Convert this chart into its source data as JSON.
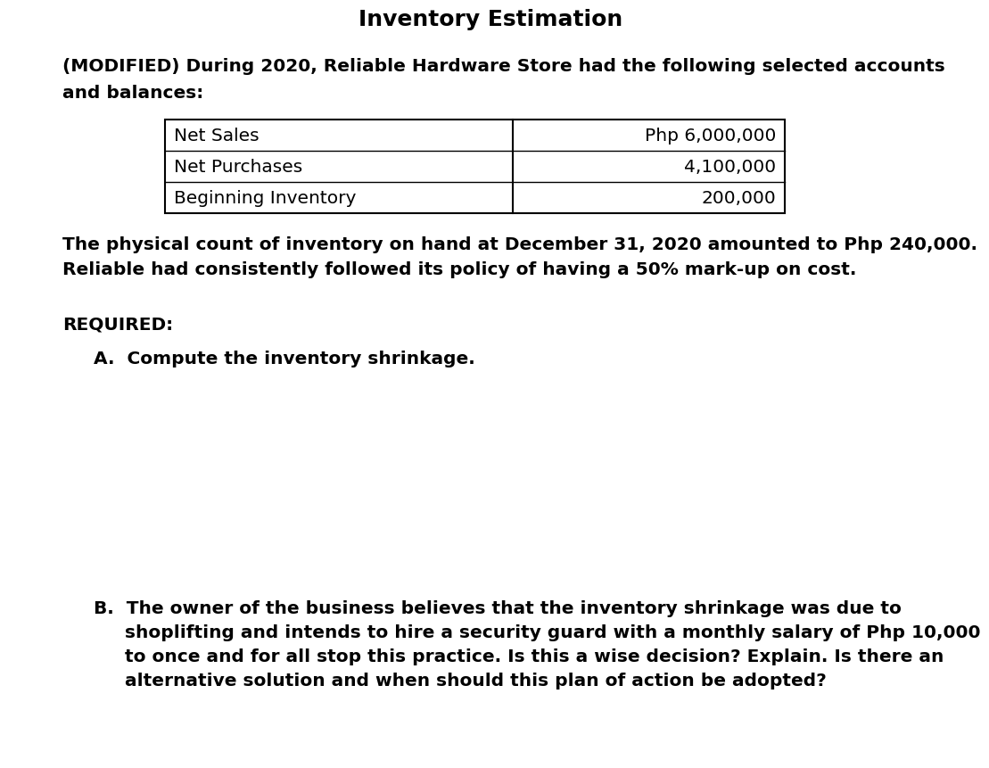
{
  "title": "Inventory Estimation",
  "bg_color": "#ffffff",
  "intro_line1": "(MODIFIED) During 2020, Reliable Hardware Store had the following selected accounts",
  "intro_line2": "and balances:",
  "table_rows": [
    [
      "Net Sales",
      "Php 6,000,000"
    ],
    [
      "Net Purchases",
      "4,100,000"
    ],
    [
      "Beginning Inventory",
      "200,000"
    ]
  ],
  "para_line1": "The physical count of inventory on hand at December 31, 2020 amounted to Php 240,000.",
  "para_line2": "Reliable had consistently followed its policy of having a 50% mark-up on cost.",
  "required_label": "REQUIRED:",
  "item_a": "A.  Compute the inventory shrinkage.",
  "item_b_lines": [
    "B.  The owner of the business believes that the inventory shrinkage was due to",
    "     shoplifting and intends to hire a security guard with a monthly salary of Php 10,000",
    "     to once and for all stop this practice. Is this a wise decision? Explain. Is there an",
    "     alternative solution and when should this plan of action be adopted?"
  ],
  "text_color": "#000000",
  "font_size": 14.5,
  "title_font_size": 18
}
